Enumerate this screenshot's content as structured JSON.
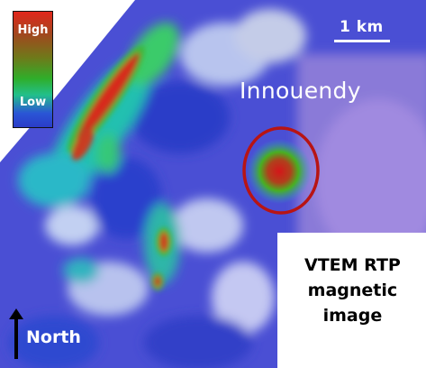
{
  "legend": {
    "high_label": "High",
    "low_label": "Low"
  },
  "scale": {
    "label": "1 km"
  },
  "place": {
    "label": "Innouendy"
  },
  "caption": {
    "text": "VTEM RTP\nmagnetic\nimage"
  },
  "north": {
    "label": "North"
  },
  "colors": {
    "high": "#e1261c",
    "mid": "#2fae2a",
    "low": "#2a3cc8",
    "target_circle": "#b81414"
  }
}
